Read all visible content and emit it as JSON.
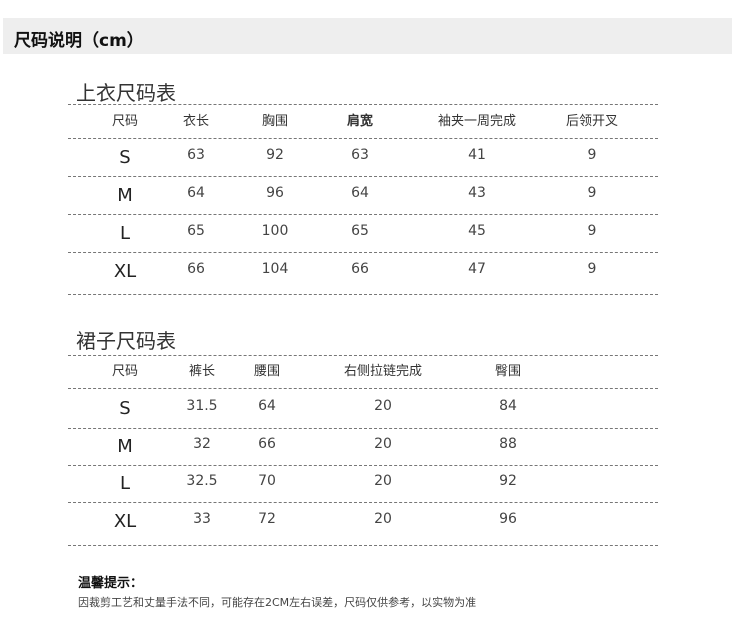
{
  "header": {
    "title": "尺码说明（cm）"
  },
  "top_table": {
    "title": "上衣尺码表",
    "columns": [
      "尺码",
      "衣长",
      "胸围",
      "肩宽",
      "袖夹一周完成",
      "后领开叉"
    ],
    "rows": [
      [
        "S",
        "63",
        "92",
        "63",
        "41",
        "9"
      ],
      [
        "M",
        "64",
        "96",
        "64",
        "43",
        "9"
      ],
      [
        "L",
        "65",
        "100",
        "65",
        "45",
        "9"
      ],
      [
        "XL",
        "66",
        "104",
        "66",
        "47",
        "9"
      ]
    ]
  },
  "skirt_table": {
    "title": "裙子尺码表",
    "columns": [
      "尺码",
      "裤长",
      "腰围",
      "右侧拉链完成",
      "臀围"
    ],
    "rows": [
      [
        "S",
        "31.5",
        "64",
        "20",
        "84"
      ],
      [
        "M",
        "32",
        "66",
        "20",
        "88"
      ],
      [
        "L",
        "32.5",
        "70",
        "20",
        "92"
      ],
      [
        "XL",
        "33",
        "72",
        "20",
        "96"
      ]
    ]
  },
  "footer": {
    "title": "温馨提示：",
    "text": "因裁剪工艺和丈量手法不同，可能存在2CM左右误差，尺码仅供参考，以实物为准"
  }
}
